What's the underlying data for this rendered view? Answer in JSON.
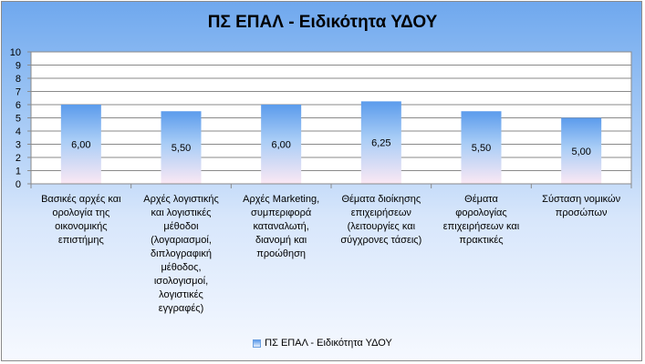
{
  "chart_data": {
    "type": "bar",
    "title": "ΠΣ ΕΠΑΛ - Ειδικότητα ΥΔΟΥ",
    "categories": [
      [
        "Βασικές αρχές και",
        "ορολογία της",
        "οικονομικής",
        "επιστήμης"
      ],
      [
        "Αρχές λογιστικής",
        "και λογιστικές",
        "μέθοδοι",
        "(λογαριασμοί,",
        "διπλογραφική",
        "μέθοδος,",
        "ισολογισμοί,",
        "λογιστικές",
        "εγγραφές)"
      ],
      [
        "Αρχές Marketing,",
        "συμπεριφορά",
        "καταναλωτή,",
        "διανομή και",
        "προώθηση"
      ],
      [
        "Θέματα διοίκησης",
        "επιχειρήσεων",
        "(λειτουργίες και",
        "σύγχρονες τάσεις)"
      ],
      [
        "Θέματα",
        "φορολογίας",
        "επιχειρήσεων και",
        "πρακτικές"
      ],
      [
        "Σύσταση νομικών",
        "προσώπων"
      ]
    ],
    "values": [
      6.0,
      5.5,
      6.0,
      6.25,
      5.5,
      5.0
    ],
    "value_labels": [
      "6,00",
      "5,50",
      "6,00",
      "6,25",
      "5,50",
      "5,00"
    ],
    "series": [
      {
        "name": "ΠΣ ΕΠΑΛ - Ειδικότητα ΥΔΟΥ",
        "values": [
          6.0,
          5.5,
          6.0,
          6.25,
          5.5,
          5.0
        ]
      }
    ],
    "y_ticks": [
      "0",
      "1",
      "2",
      "3",
      "4",
      "5",
      "6",
      "7",
      "8",
      "9",
      "10"
    ],
    "ylim": [
      0,
      10
    ],
    "grid": true,
    "legend_position": "bottom",
    "colors": {
      "bar_top": "#5b9bec",
      "bar_bottom": "#fbe8f4",
      "background_top": "#6fa8ee"
    }
  }
}
